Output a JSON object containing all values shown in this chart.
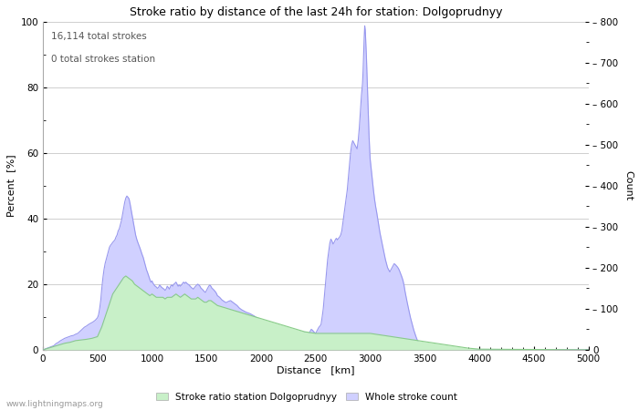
{
  "title": "Stroke ratio by distance of the last 24h for station: Dolgoprudnyy",
  "xlabel": "Distance   [km]",
  "ylabel_left": "Percent  [%]",
  "ylabel_right": "Count",
  "annotation_line1": "16,114 total strokes",
  "annotation_line2": "0 total strokes station",
  "xlim": [
    0,
    5000
  ],
  "ylim_left": [
    0,
    100
  ],
  "ylim_right": [
    0,
    800
  ],
  "xticks": [
    0,
    500,
    1000,
    1500,
    2000,
    2500,
    3000,
    3500,
    4000,
    4500,
    5000
  ],
  "yticks_left": [
    0,
    20,
    40,
    60,
    80,
    100
  ],
  "yticks_right": [
    0,
    100,
    200,
    300,
    400,
    500,
    600,
    700,
    800
  ],
  "legend_label_green": "Stroke ratio station Dolgoprudnyy",
  "legend_label_blue": "Whole stroke count",
  "fill_color_green": "#c8f0c8",
  "fill_color_blue": "#d0d0ff",
  "line_color_blue": "#9898ee",
  "line_color_green": "#88cc88",
  "watermark": "www.lightningmaps.org",
  "background_color": "#ffffff",
  "grid_color": "#c8c8c8",
  "scale_factor": 8.0,
  "whole_stroke_data": [
    [
      0,
      0
    ],
    [
      10,
      0
    ],
    [
      20,
      2
    ],
    [
      30,
      3
    ],
    [
      40,
      4
    ],
    [
      50,
      5
    ],
    [
      60,
      6
    ],
    [
      70,
      7
    ],
    [
      80,
      8
    ],
    [
      90,
      9
    ],
    [
      100,
      10
    ],
    [
      120,
      15
    ],
    [
      140,
      18
    ],
    [
      160,
      22
    ],
    [
      180,
      25
    ],
    [
      200,
      28
    ],
    [
      220,
      30
    ],
    [
      240,
      32
    ],
    [
      260,
      34
    ],
    [
      280,
      35
    ],
    [
      300,
      38
    ],
    [
      320,
      40
    ],
    [
      340,
      45
    ],
    [
      360,
      50
    ],
    [
      380,
      55
    ],
    [
      400,
      58
    ],
    [
      420,
      62
    ],
    [
      440,
      65
    ],
    [
      460,
      68
    ],
    [
      480,
      72
    ],
    [
      500,
      78
    ],
    [
      510,
      85
    ],
    [
      520,
      100
    ],
    [
      530,
      120
    ],
    [
      540,
      150
    ],
    [
      550,
      175
    ],
    [
      560,
      195
    ],
    [
      570,
      210
    ],
    [
      580,
      220
    ],
    [
      590,
      230
    ],
    [
      600,
      240
    ],
    [
      610,
      250
    ],
    [
      620,
      255
    ],
    [
      630,
      258
    ],
    [
      640,
      262
    ],
    [
      650,
      265
    ],
    [
      660,
      268
    ],
    [
      670,
      275
    ],
    [
      680,
      280
    ],
    [
      690,
      290
    ],
    [
      700,
      295
    ],
    [
      710,
      305
    ],
    [
      720,
      315
    ],
    [
      730,
      330
    ],
    [
      740,
      345
    ],
    [
      750,
      360
    ],
    [
      760,
      370
    ],
    [
      770,
      375
    ],
    [
      780,
      372
    ],
    [
      790,
      368
    ],
    [
      800,
      355
    ],
    [
      810,
      340
    ],
    [
      820,
      325
    ],
    [
      830,
      310
    ],
    [
      840,
      295
    ],
    [
      850,
      280
    ],
    [
      860,
      270
    ],
    [
      870,
      262
    ],
    [
      880,
      255
    ],
    [
      890,
      248
    ],
    [
      900,
      240
    ],
    [
      910,
      232
    ],
    [
      920,
      225
    ],
    [
      930,
      215
    ],
    [
      940,
      205
    ],
    [
      950,
      195
    ],
    [
      960,
      188
    ],
    [
      970,
      180
    ],
    [
      980,
      172
    ],
    [
      990,
      165
    ],
    [
      1000,
      168
    ],
    [
      1010,
      162
    ],
    [
      1020,
      158
    ],
    [
      1030,
      155
    ],
    [
      1040,
      153
    ],
    [
      1050,
      150
    ],
    [
      1060,
      152
    ],
    [
      1070,
      158
    ],
    [
      1080,
      155
    ],
    [
      1090,
      152
    ],
    [
      1100,
      150
    ],
    [
      1110,
      148
    ],
    [
      1120,
      145
    ],
    [
      1130,
      148
    ],
    [
      1140,
      155
    ],
    [
      1150,
      152
    ],
    [
      1160,
      148
    ],
    [
      1170,
      155
    ],
    [
      1180,
      158
    ],
    [
      1190,
      155
    ],
    [
      1200,
      160
    ],
    [
      1210,
      162
    ],
    [
      1220,
      165
    ],
    [
      1230,
      160
    ],
    [
      1240,
      155
    ],
    [
      1250,
      158
    ],
    [
      1260,
      155
    ],
    [
      1270,
      158
    ],
    [
      1280,
      162
    ],
    [
      1290,
      165
    ],
    [
      1300,
      162
    ],
    [
      1310,
      165
    ],
    [
      1320,
      162
    ],
    [
      1330,
      160
    ],
    [
      1340,
      158
    ],
    [
      1350,
      155
    ],
    [
      1360,
      152
    ],
    [
      1370,
      150
    ],
    [
      1380,
      148
    ],
    [
      1390,
      152
    ],
    [
      1400,
      155
    ],
    [
      1410,
      158
    ],
    [
      1420,
      160
    ],
    [
      1430,
      158
    ],
    [
      1440,
      155
    ],
    [
      1450,
      150
    ],
    [
      1460,
      148
    ],
    [
      1470,
      145
    ],
    [
      1480,
      142
    ],
    [
      1490,
      140
    ],
    [
      1500,
      145
    ],
    [
      1510,
      150
    ],
    [
      1520,
      155
    ],
    [
      1530,
      158
    ],
    [
      1540,
      155
    ],
    [
      1550,
      150
    ],
    [
      1560,
      148
    ],
    [
      1570,
      145
    ],
    [
      1580,
      142
    ],
    [
      1590,
      138
    ],
    [
      1600,
      132
    ],
    [
      1620,
      128
    ],
    [
      1640,
      122
    ],
    [
      1660,
      118
    ],
    [
      1680,
      115
    ],
    [
      1700,
      118
    ],
    [
      1720,
      120
    ],
    [
      1740,
      116
    ],
    [
      1760,
      112
    ],
    [
      1780,
      108
    ],
    [
      1800,
      102
    ],
    [
      1820,
      98
    ],
    [
      1840,
      95
    ],
    [
      1860,
      92
    ],
    [
      1880,
      90
    ],
    [
      1900,
      88
    ],
    [
      1920,
      85
    ],
    [
      1940,
      82
    ],
    [
      1960,
      78
    ],
    [
      1980,
      75
    ],
    [
      2000,
      72
    ],
    [
      2020,
      70
    ],
    [
      2040,
      68
    ],
    [
      2060,
      65
    ],
    [
      2080,
      62
    ],
    [
      2100,
      60
    ],
    [
      2120,
      58
    ],
    [
      2140,
      55
    ],
    [
      2160,
      53
    ],
    [
      2180,
      50
    ],
    [
      2200,
      48
    ],
    [
      2220,
      50
    ],
    [
      2240,
      52
    ],
    [
      2260,
      50
    ],
    [
      2280,
      48
    ],
    [
      2300,
      45
    ],
    [
      2320,
      45
    ],
    [
      2340,
      42
    ],
    [
      2360,
      45
    ],
    [
      2380,
      42
    ],
    [
      2400,
      43
    ],
    [
      2420,
      42
    ],
    [
      2440,
      40
    ],
    [
      2450,
      45
    ],
    [
      2460,
      50
    ],
    [
      2470,
      48
    ],
    [
      2480,
      45
    ],
    [
      2490,
      42
    ],
    [
      2500,
      40
    ],
    [
      2510,
      45
    ],
    [
      2520,
      50
    ],
    [
      2530,
      55
    ],
    [
      2540,
      58
    ],
    [
      2550,
      62
    ],
    [
      2560,
      80
    ],
    [
      2570,
      100
    ],
    [
      2580,
      130
    ],
    [
      2590,
      160
    ],
    [
      2600,
      190
    ],
    [
      2610,
      220
    ],
    [
      2620,
      240
    ],
    [
      2630,
      260
    ],
    [
      2640,
      270
    ],
    [
      2650,
      265
    ],
    [
      2660,
      258
    ],
    [
      2670,
      262
    ],
    [
      2680,
      268
    ],
    [
      2690,
      272
    ],
    [
      2700,
      268
    ],
    [
      2710,
      272
    ],
    [
      2720,
      275
    ],
    [
      2730,
      280
    ],
    [
      2740,
      290
    ],
    [
      2750,
      310
    ],
    [
      2760,
      330
    ],
    [
      2770,
      350
    ],
    [
      2780,
      370
    ],
    [
      2790,
      390
    ],
    [
      2800,
      420
    ],
    [
      2810,
      450
    ],
    [
      2820,
      480
    ],
    [
      2830,
      500
    ],
    [
      2840,
      510
    ],
    [
      2850,
      505
    ],
    [
      2860,
      500
    ],
    [
      2870,
      495
    ],
    [
      2880,
      490
    ],
    [
      2890,
      510
    ],
    [
      2900,
      540
    ],
    [
      2910,
      580
    ],
    [
      2920,
      620
    ],
    [
      2930,
      650
    ],
    [
      2935,
      680
    ],
    [
      2940,
      720
    ],
    [
      2945,
      760
    ],
    [
      2950,
      790
    ],
    [
      2955,
      780
    ],
    [
      2960,
      750
    ],
    [
      2965,
      720
    ],
    [
      2970,
      680
    ],
    [
      2975,
      640
    ],
    [
      2980,
      600
    ],
    [
      2985,
      560
    ],
    [
      2990,
      520
    ],
    [
      2995,
      490
    ],
    [
      3000,
      465
    ],
    [
      3010,
      440
    ],
    [
      3020,
      415
    ],
    [
      3030,
      390
    ],
    [
      3040,
      368
    ],
    [
      3050,
      350
    ],
    [
      3060,
      335
    ],
    [
      3070,
      318
    ],
    [
      3080,
      302
    ],
    [
      3090,
      285
    ],
    [
      3100,
      272
    ],
    [
      3110,
      258
    ],
    [
      3120,
      245
    ],
    [
      3130,
      232
    ],
    [
      3140,
      220
    ],
    [
      3150,
      210
    ],
    [
      3160,
      200
    ],
    [
      3170,
      195
    ],
    [
      3180,
      190
    ],
    [
      3190,
      195
    ],
    [
      3200,
      200
    ],
    [
      3210,
      205
    ],
    [
      3220,
      210
    ],
    [
      3230,
      208
    ],
    [
      3240,
      205
    ],
    [
      3250,
      202
    ],
    [
      3260,
      198
    ],
    [
      3270,
      192
    ],
    [
      3280,
      185
    ],
    [
      3290,
      178
    ],
    [
      3300,
      170
    ],
    [
      3310,
      158
    ],
    [
      3320,
      142
    ],
    [
      3330,
      128
    ],
    [
      3340,
      115
    ],
    [
      3350,
      102
    ],
    [
      3360,
      90
    ],
    [
      3370,
      78
    ],
    [
      3380,
      68
    ],
    [
      3390,
      58
    ],
    [
      3400,
      48
    ],
    [
      3410,
      40
    ],
    [
      3420,
      32
    ],
    [
      3430,
      25
    ],
    [
      3440,
      20
    ],
    [
      3450,
      16
    ],
    [
      3460,
      12
    ],
    [
      3470,
      10
    ],
    [
      3480,
      8
    ],
    [
      3490,
      6
    ],
    [
      3500,
      5
    ],
    [
      3520,
      4
    ],
    [
      3540,
      3
    ],
    [
      3560,
      3
    ],
    [
      3580,
      2
    ],
    [
      3600,
      2
    ],
    [
      3620,
      2
    ],
    [
      3640,
      1
    ],
    [
      3660,
      1
    ],
    [
      3680,
      1
    ],
    [
      3700,
      1
    ],
    [
      3750,
      1
    ],
    [
      3800,
      1
    ],
    [
      3850,
      0
    ],
    [
      3900,
      0
    ],
    [
      4000,
      0
    ],
    [
      4100,
      0
    ],
    [
      4500,
      0
    ],
    [
      5000,
      0
    ]
  ],
  "green_fill_data": [
    [
      0,
      0
    ],
    [
      10,
      0
    ],
    [
      20,
      0.2
    ],
    [
      30,
      0.3
    ],
    [
      40,
      0.4
    ],
    [
      50,
      0.5
    ],
    [
      100,
      1.0
    ],
    [
      150,
      1.5
    ],
    [
      200,
      2.0
    ],
    [
      250,
      2.3
    ],
    [
      300,
      2.8
    ],
    [
      350,
      3.0
    ],
    [
      400,
      3.2
    ],
    [
      450,
      3.5
    ],
    [
      500,
      4.0
    ],
    [
      520,
      5.5
    ],
    [
      540,
      7
    ],
    [
      560,
      9
    ],
    [
      580,
      11
    ],
    [
      600,
      13
    ],
    [
      620,
      15
    ],
    [
      640,
      17
    ],
    [
      660,
      18
    ],
    [
      680,
      19
    ],
    [
      700,
      20
    ],
    [
      720,
      21
    ],
    [
      740,
      22
    ],
    [
      760,
      22.5
    ],
    [
      780,
      22
    ],
    [
      800,
      21.5
    ],
    [
      820,
      21
    ],
    [
      840,
      20
    ],
    [
      860,
      19.5
    ],
    [
      880,
      19
    ],
    [
      900,
      18.5
    ],
    [
      920,
      18
    ],
    [
      940,
      17.5
    ],
    [
      960,
      17
    ],
    [
      980,
      16.5
    ],
    [
      1000,
      17
    ],
    [
      1020,
      16.5
    ],
    [
      1040,
      16
    ],
    [
      1060,
      16
    ],
    [
      1080,
      16
    ],
    [
      1100,
      16
    ],
    [
      1120,
      15.5
    ],
    [
      1140,
      16
    ],
    [
      1160,
      16
    ],
    [
      1180,
      16
    ],
    [
      1200,
      16.5
    ],
    [
      1220,
      17
    ],
    [
      1240,
      16.5
    ],
    [
      1260,
      16
    ],
    [
      1280,
      16.5
    ],
    [
      1300,
      17
    ],
    [
      1320,
      16.5
    ],
    [
      1340,
      16
    ],
    [
      1360,
      15.5
    ],
    [
      1380,
      15.5
    ],
    [
      1400,
      15.5
    ],
    [
      1420,
      16
    ],
    [
      1440,
      15.5
    ],
    [
      1460,
      15
    ],
    [
      1480,
      14.5
    ],
    [
      1500,
      14.5
    ],
    [
      1520,
      15
    ],
    [
      1540,
      15
    ],
    [
      1560,
      14.5
    ],
    [
      1580,
      14
    ],
    [
      1600,
      13.5
    ],
    [
      1650,
      13
    ],
    [
      1700,
      12.5
    ],
    [
      1750,
      12
    ],
    [
      1800,
      11.5
    ],
    [
      1850,
      11
    ],
    [
      1900,
      10.5
    ],
    [
      1950,
      10
    ],
    [
      2000,
      9.5
    ],
    [
      2100,
      8.5
    ],
    [
      2200,
      7.5
    ],
    [
      2300,
      6.5
    ],
    [
      2400,
      5.5
    ],
    [
      2500,
      5.0
    ],
    [
      2600,
      5.0
    ],
    [
      2700,
      5.0
    ],
    [
      2800,
      5.0
    ],
    [
      2900,
      5.0
    ],
    [
      3000,
      5.0
    ],
    [
      3100,
      4.5
    ],
    [
      3200,
      4.0
    ],
    [
      3300,
      3.5
    ],
    [
      3400,
      3.0
    ],
    [
      3500,
      2.5
    ],
    [
      3600,
      2.0
    ],
    [
      3700,
      1.5
    ],
    [
      3800,
      1.0
    ],
    [
      3900,
      0.5
    ],
    [
      4000,
      0.2
    ],
    [
      5000,
      0
    ]
  ]
}
